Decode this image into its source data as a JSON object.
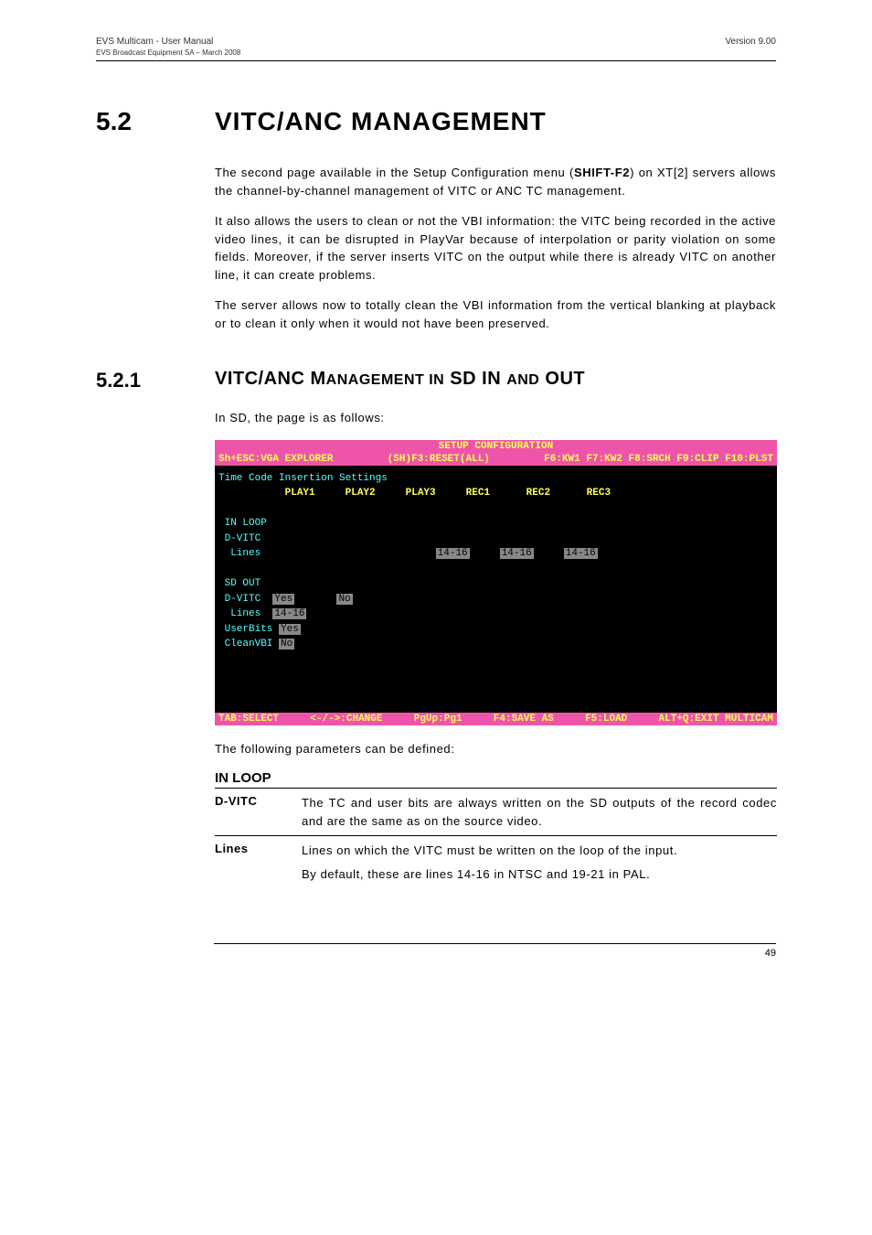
{
  "header": {
    "left_top": "EVS Multicam - User Manual",
    "left_sub": "EVS Broadcast Equipment SA – March 2008",
    "right": "Version 9.00"
  },
  "section": {
    "num": "5.2",
    "title": "VITC/ANC MANAGEMENT"
  },
  "para1_a": "The second page available in the Setup Configuration menu (",
  "para1_b": "SHIFT-F2",
  "para1_c": ") on XT[2] servers allows the channel-by-channel management of VITC or ANC TC management.",
  "para2": "It also allows the users to clean or not the VBI information: the VITC being recorded in the active video lines, it can be disrupted in PlayVar because of interpolation or parity violation on some fields. Moreover, if the server inserts VITC on the output while there is already VITC on another line, it can create problems.",
  "para3": "The server allows now to totally clean the VBI information from the vertical blanking at playback or to clean it only when it would not have been preserved.",
  "subsection": {
    "num": "5.2.1",
    "title_a": "VITC/ANC M",
    "title_b": "ANAGEMENT IN",
    "title_c": " SD IN ",
    "title_d": "AND",
    "title_e": " OUT"
  },
  "intro_sd": "In SD, the page is as follows:",
  "screenshot": {
    "title": "SETUP CONFIGURATION",
    "top_left": "Sh+ESC:VGA EXPLORER",
    "top_mid": "(SH)F3:RESET(ALL)",
    "top_right": "F6:KW1 F7:KW2 F8:SRCH F9:CLIP F10:PLST",
    "heading": "Time Code Insertion Settings",
    "cols": "           PLAY1     PLAY2     PLAY3     REC1      REC2      REC3",
    "inloop": " IN LOOP",
    "dvitc1": " D-VITC",
    "lines1_label": "  Lines",
    "lines1_vals": [
      "14-16",
      "14-16",
      "14-16"
    ],
    "sdout": " SD OUT",
    "dvitc2_label": " D-VITC  ",
    "dvitc2_vals": [
      "Yes",
      "No"
    ],
    "lines2_label": "  Lines  ",
    "lines2_val": "14-16",
    "userbits_label": " UserBits ",
    "userbits_val": "Yes",
    "cleanvbi_label": " CleanVBI ",
    "cleanvbi_val": "No",
    "bottom": [
      "TAB:SELECT",
      "<-/->:CHANGE",
      "PgUp:Pg1",
      "F4:SAVE AS",
      "F5:LOAD",
      "ALT+Q:EXIT MULTICAM"
    ]
  },
  "params_intro": "The following parameters can be defined:",
  "params_heading": "IN LOOP",
  "param_dvitc": {
    "label": "D-VITC",
    "desc": "The TC and user bits are always written on the SD outputs of the record codec and are the same as on the source video."
  },
  "param_lines": {
    "label": "Lines",
    "desc1": "Lines on which the VITC must be written on the loop of the input.",
    "desc2": "By default, these are lines 14-16 in NTSC and 19-21 in PAL."
  },
  "footer_page": "49"
}
